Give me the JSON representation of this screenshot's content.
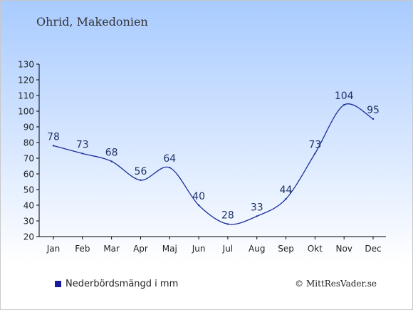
{
  "location_label": "Ohrid, Makedonien",
  "legend_label": "Nederbördsmängd i mm",
  "copyright": "© MittResVader.se",
  "colors": {
    "line": "#1a2f9a",
    "legend_swatch": "#1a1a9a",
    "label_text": "#1f3264",
    "axis": "#000000"
  },
  "chart_data": {
    "type": "line",
    "categories": [
      "Jan",
      "Feb",
      "Mar",
      "Apr",
      "Maj",
      "Jun",
      "Jul",
      "Aug",
      "Sep",
      "Okt",
      "Nov",
      "Dec"
    ],
    "series": [
      {
        "name": "Nederbördsmängd i mm",
        "values": [
          78,
          73,
          68,
          56,
          64,
          40,
          28,
          33,
          44,
          73,
          104,
          95
        ]
      }
    ],
    "ylim": [
      20,
      130
    ],
    "yticks": [
      20,
      30,
      40,
      50,
      60,
      70,
      80,
      90,
      100,
      110,
      120,
      130
    ],
    "grid": false,
    "legend_position": "bottom-left"
  }
}
